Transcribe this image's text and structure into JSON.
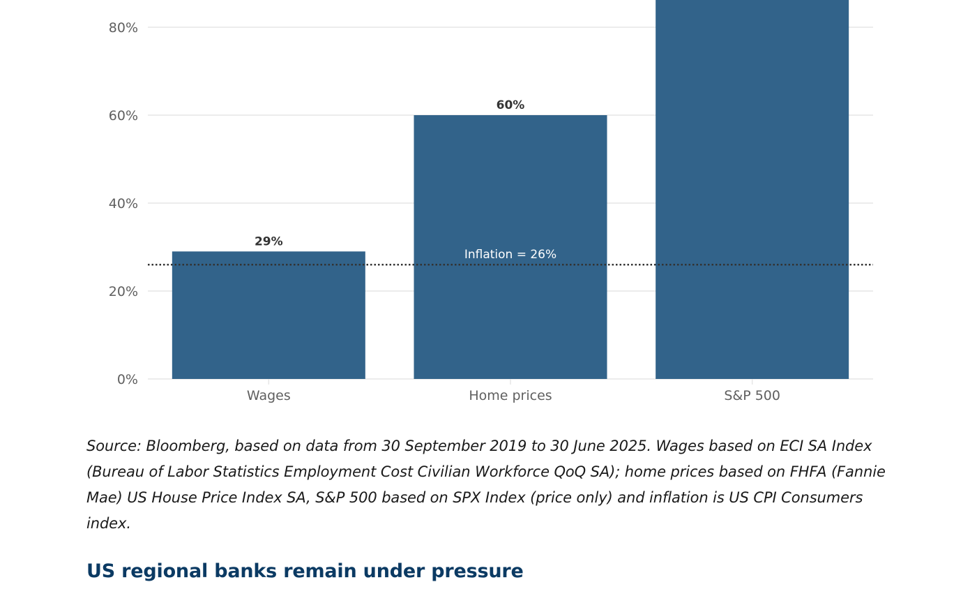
{
  "chart_data": {
    "type": "bar",
    "categories": [
      "Wages",
      "Home prices",
      "S&P 500"
    ],
    "values": [
      29,
      60,
      90
    ],
    "data_labels": [
      "29%",
      "60%",
      ""
    ],
    "ylim": [
      0,
      80
    ],
    "yticks": [
      0,
      20,
      40,
      60,
      80
    ],
    "ytick_labels": [
      "0%",
      "20%",
      "40%",
      "60%",
      "80%"
    ],
    "grid": true,
    "bar_color": "#32638a",
    "reference_line": {
      "value": 26,
      "label": "Inflation = 26%",
      "style": "dotted",
      "color": "#333333"
    }
  },
  "source_text": "Source: Bloomberg, based on data from 30 September 2019 to 30 June 2025. Wages based on ECI SA Index (Bureau of Labor Statistics Employment Cost Civilian Workforce QoQ SA); home prices based on FHFA (Fannie Mae) US House Price Index SA, S&P 500 based on SPX Index (price only) and inflation is US CPI Consumers index.",
  "next_heading": "US regional banks remain under pressure",
  "colors": {
    "heading": "#0b3a63",
    "grid": "#e6e6e6"
  }
}
